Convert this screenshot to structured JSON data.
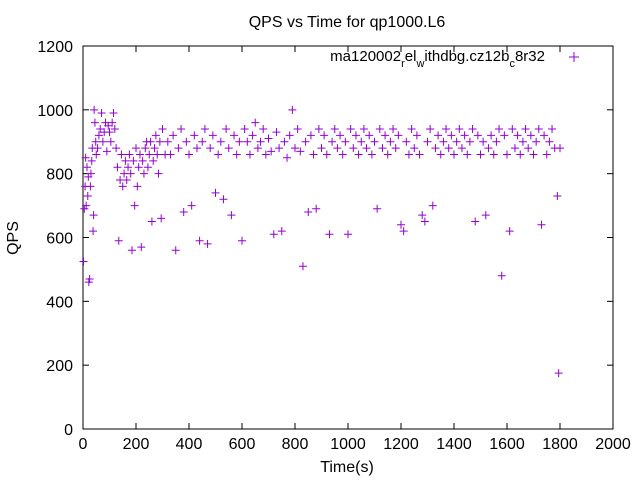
{
  "chart_data": {
    "type": "scatter",
    "title": "QPS vs Time for qp1000.L6",
    "xlabel": "Time(s)",
    "ylabel": "QPS",
    "xlim": [
      0,
      2000
    ],
    "ylim": [
      0,
      1200
    ],
    "xticks": [
      0,
      200,
      400,
      600,
      800,
      1000,
      1200,
      1400,
      1600,
      1800,
      2000
    ],
    "yticks": [
      0,
      200,
      400,
      600,
      800,
      1000,
      1200
    ],
    "grid": false,
    "legend_position": "top-right",
    "marker": "plus",
    "series": [
      {
        "name": "ma120002_rel_withdbg.cz12b_c8r32",
        "color": "#9400d3",
        "points": [
          [
            2,
            525
          ],
          [
            5,
            690
          ],
          [
            8,
            760
          ],
          [
            10,
            850
          ],
          [
            12,
            700
          ],
          [
            15,
            820
          ],
          [
            18,
            730
          ],
          [
            20,
            790
          ],
          [
            22,
            460
          ],
          [
            25,
            470
          ],
          [
            28,
            760
          ],
          [
            30,
            800
          ],
          [
            33,
            840
          ],
          [
            35,
            880
          ],
          [
            38,
            620
          ],
          [
            40,
            670
          ],
          [
            42,
            1000
          ],
          [
            45,
            960
          ],
          [
            48,
            900
          ],
          [
            50,
            860
          ],
          [
            55,
            880
          ],
          [
            60,
            920
          ],
          [
            65,
            940
          ],
          [
            70,
            990
          ],
          [
            75,
            900
          ],
          [
            80,
            930
          ],
          [
            85,
            960
          ],
          [
            90,
            870
          ],
          [
            95,
            950
          ],
          [
            100,
            930
          ],
          [
            105,
            900
          ],
          [
            110,
            960
          ],
          [
            115,
            990
          ],
          [
            120,
            940
          ],
          [
            125,
            880
          ],
          [
            130,
            820
          ],
          [
            135,
            590
          ],
          [
            140,
            780
          ],
          [
            145,
            860
          ],
          [
            150,
            760
          ],
          [
            155,
            800
          ],
          [
            160,
            840
          ],
          [
            165,
            780
          ],
          [
            170,
            820
          ],
          [
            175,
            860
          ],
          [
            180,
            800
          ],
          [
            185,
            560
          ],
          [
            190,
            840
          ],
          [
            195,
            700
          ],
          [
            200,
            880
          ],
          [
            205,
            760
          ],
          [
            210,
            820
          ],
          [
            215,
            860
          ],
          [
            220,
            570
          ],
          [
            225,
            840
          ],
          [
            230,
            800
          ],
          [
            235,
            880
          ],
          [
            240,
            900
          ],
          [
            245,
            820
          ],
          [
            250,
            860
          ],
          [
            255,
            900
          ],
          [
            260,
            650
          ],
          [
            265,
            840
          ],
          [
            270,
            880
          ],
          [
            275,
            920
          ],
          [
            280,
            860
          ],
          [
            285,
            800
          ],
          [
            290,
            900
          ],
          [
            295,
            660
          ],
          [
            300,
            940
          ],
          [
            310,
            860
          ],
          [
            320,
            900
          ],
          [
            330,
            860
          ],
          [
            340,
            920
          ],
          [
            350,
            560
          ],
          [
            360,
            880
          ],
          [
            370,
            940
          ],
          [
            380,
            680
          ],
          [
            390,
            900
          ],
          [
            400,
            860
          ],
          [
            410,
            700
          ],
          [
            420,
            920
          ],
          [
            430,
            880
          ],
          [
            440,
            590
          ],
          [
            450,
            900
          ],
          [
            460,
            940
          ],
          [
            470,
            580
          ],
          [
            480,
            880
          ],
          [
            490,
            920
          ],
          [
            500,
            740
          ],
          [
            510,
            860
          ],
          [
            520,
            900
          ],
          [
            530,
            720
          ],
          [
            540,
            940
          ],
          [
            550,
            880
          ],
          [
            560,
            670
          ],
          [
            570,
            920
          ],
          [
            580,
            860
          ],
          [
            590,
            900
          ],
          [
            600,
            590
          ],
          [
            610,
            940
          ],
          [
            620,
            900
          ],
          [
            630,
            860
          ],
          [
            640,
            920
          ],
          [
            650,
            960
          ],
          [
            660,
            880
          ],
          [
            670,
            900
          ],
          [
            680,
            940
          ],
          [
            690,
            860
          ],
          [
            700,
            910
          ],
          [
            710,
            870
          ],
          [
            720,
            610
          ],
          [
            730,
            930
          ],
          [
            740,
            880
          ],
          [
            750,
            620
          ],
          [
            760,
            900
          ],
          [
            770,
            850
          ],
          [
            780,
            920
          ],
          [
            790,
            1000
          ],
          [
            800,
            880
          ],
          [
            810,
            940
          ],
          [
            820,
            870
          ],
          [
            830,
            510
          ],
          [
            840,
            900
          ],
          [
            850,
            680
          ],
          [
            860,
            920
          ],
          [
            870,
            860
          ],
          [
            880,
            690
          ],
          [
            890,
            940
          ],
          [
            900,
            880
          ],
          [
            910,
            920
          ],
          [
            920,
            860
          ],
          [
            930,
            610
          ],
          [
            940,
            900
          ],
          [
            950,
            940
          ],
          [
            960,
            880
          ],
          [
            970,
            920
          ],
          [
            980,
            860
          ],
          [
            990,
            900
          ],
          [
            1000,
            610
          ],
          [
            1010,
            940
          ],
          [
            1020,
            880
          ],
          [
            1030,
            920
          ],
          [
            1040,
            860
          ],
          [
            1050,
            900
          ],
          [
            1060,
            940
          ],
          [
            1070,
            880
          ],
          [
            1080,
            920
          ],
          [
            1090,
            860
          ],
          [
            1100,
            900
          ],
          [
            1110,
            690
          ],
          [
            1120,
            940
          ],
          [
            1130,
            880
          ],
          [
            1140,
            920
          ],
          [
            1150,
            860
          ],
          [
            1160,
            900
          ],
          [
            1170,
            940
          ],
          [
            1180,
            880
          ],
          [
            1190,
            920
          ],
          [
            1200,
            640
          ],
          [
            1210,
            620
          ],
          [
            1220,
            900
          ],
          [
            1230,
            860
          ],
          [
            1240,
            940
          ],
          [
            1250,
            880
          ],
          [
            1260,
            920
          ],
          [
            1270,
            860
          ],
          [
            1280,
            670
          ],
          [
            1290,
            650
          ],
          [
            1300,
            900
          ],
          [
            1310,
            940
          ],
          [
            1320,
            700
          ],
          [
            1330,
            880
          ],
          [
            1340,
            920
          ],
          [
            1350,
            860
          ],
          [
            1360,
            900
          ],
          [
            1370,
            940
          ],
          [
            1380,
            880
          ],
          [
            1390,
            920
          ],
          [
            1400,
            860
          ],
          [
            1410,
            900
          ],
          [
            1420,
            940
          ],
          [
            1430,
            880
          ],
          [
            1440,
            920
          ],
          [
            1450,
            860
          ],
          [
            1460,
            900
          ],
          [
            1470,
            940
          ],
          [
            1480,
            650
          ],
          [
            1490,
            920
          ],
          [
            1500,
            860
          ],
          [
            1510,
            900
          ],
          [
            1520,
            670
          ],
          [
            1530,
            880
          ],
          [
            1540,
            920
          ],
          [
            1550,
            860
          ],
          [
            1560,
            900
          ],
          [
            1570,
            940
          ],
          [
            1580,
            480
          ],
          [
            1590,
            920
          ],
          [
            1600,
            860
          ],
          [
            1610,
            620
          ],
          [
            1620,
            940
          ],
          [
            1630,
            880
          ],
          [
            1640,
            920
          ],
          [
            1650,
            860
          ],
          [
            1660,
            900
          ],
          [
            1670,
            940
          ],
          [
            1680,
            880
          ],
          [
            1690,
            920
          ],
          [
            1700,
            860
          ],
          [
            1710,
            900
          ],
          [
            1720,
            940
          ],
          [
            1730,
            640
          ],
          [
            1740,
            920
          ],
          [
            1750,
            860
          ],
          [
            1760,
            900
          ],
          [
            1770,
            940
          ],
          [
            1780,
            880
          ],
          [
            1790,
            730
          ],
          [
            1795,
            175
          ],
          [
            1800,
            880
          ]
        ]
      }
    ]
  }
}
